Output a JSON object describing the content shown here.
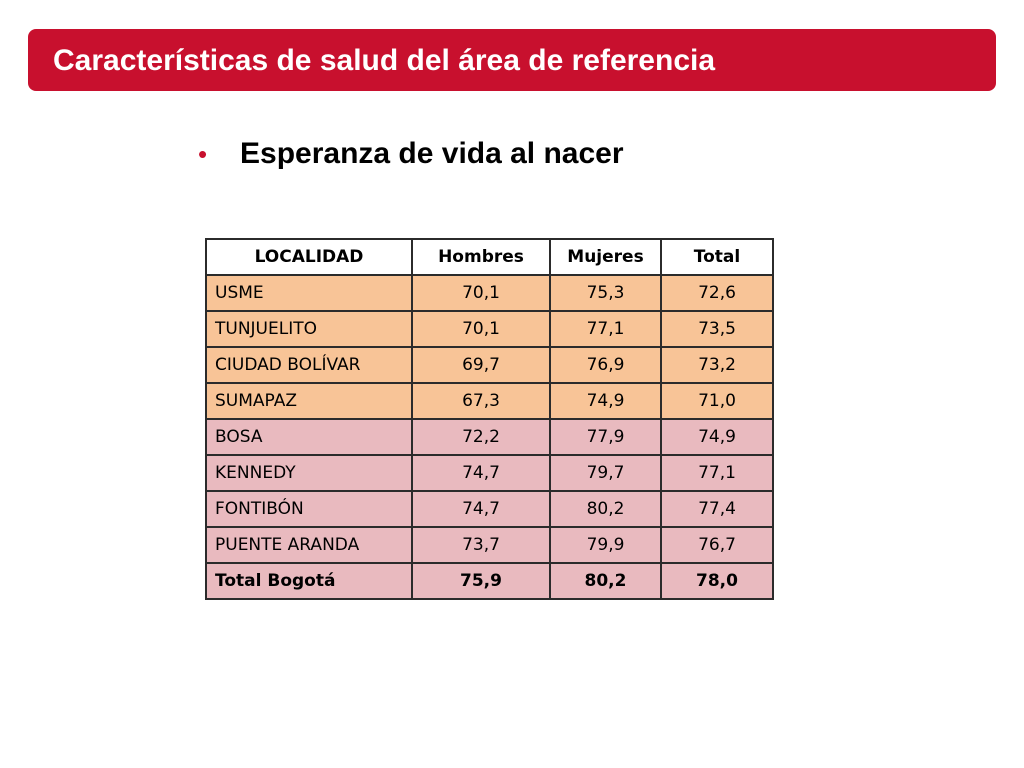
{
  "slide": {
    "title": "Características de salud del área de referencia",
    "bullet_text": "Esperanza de vida al nacer",
    "colors": {
      "title_bar": "#c8102e",
      "bullet": "#c8102e",
      "group_a_rows": "#f8c497",
      "group_b_rows": "#e9babf"
    }
  },
  "table": {
    "headers": [
      "LOCALIDAD",
      "Hombres",
      "Mujeres",
      "Total"
    ],
    "rows": [
      {
        "localidad": "USME",
        "hombres": "70,1",
        "mujeres": "75,3",
        "total": "72,6"
      },
      {
        "localidad": "TUNJUELITO",
        "hombres": "70,1",
        "mujeres": "77,1",
        "total": "73,5"
      },
      {
        "localidad": "CIUDAD BOLÍVAR",
        "hombres": "69,7",
        "mujeres": "76,9",
        "total": "73,2"
      },
      {
        "localidad": "SUMAPAZ",
        "hombres": "67,3",
        "mujeres": "74,9",
        "total": "71,0"
      },
      {
        "localidad": "BOSA",
        "hombres": "72,2",
        "mujeres": "77,9",
        "total": "74,9"
      },
      {
        "localidad": "KENNEDY",
        "hombres": "74,7",
        "mujeres": "79,7",
        "total": "77,1"
      },
      {
        "localidad": "FONTIBÓN",
        "hombres": "74,7",
        "mujeres": "80,2",
        "total": "77,4"
      },
      {
        "localidad": "PUENTE ARANDA",
        "hombres": "73,7",
        "mujeres": "79,9",
        "total": "76,7"
      },
      {
        "localidad": "Total Bogotá",
        "hombres": "75,9",
        "mujeres": "80,2",
        "total": "78,0"
      }
    ]
  }
}
